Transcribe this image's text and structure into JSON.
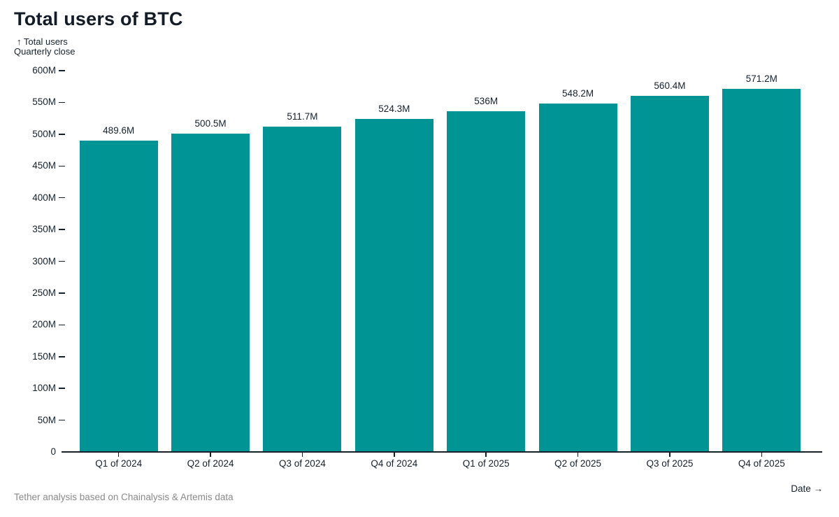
{
  "header": {
    "title": "Total users of BTC"
  },
  "chart_data": {
    "type": "bar",
    "title": "Total users of BTC",
    "y_axis_title_line1": "Total users",
    "y_axis_title_arrow": "↑",
    "y_axis_title_line2": "Quarterly close",
    "x_axis_title": "Date →",
    "categories": [
      "Q1 of 2024",
      "Q2 of 2024",
      "Q3 of 2024",
      "Q4 of 2024",
      "Q1 of 2025",
      "Q2 of 2025",
      "Q3 of 2025",
      "Q4 of 2025"
    ],
    "values": [
      489.6,
      500.5,
      511.7,
      524.3,
      536,
      548.2,
      560.4,
      571.2
    ],
    "value_labels": [
      "489.6M",
      "500.5M",
      "511.7M",
      "524.3M",
      "536M",
      "548.2M",
      "560.4M",
      "571.2M"
    ],
    "ylim": [
      0,
      600
    ],
    "y_tick_step": 50,
    "y_tick_labels": [
      "0",
      "50M",
      "100M",
      "150M",
      "200M",
      "250M",
      "300M",
      "350M",
      "400M",
      "450M",
      "500M",
      "550M",
      "600M"
    ],
    "bar_color": "#009494",
    "axis_color": "#16212b",
    "grid": false,
    "legend": "none"
  },
  "footer": {
    "caption": "Tether analysis based on Chainalysis & Artemis data"
  }
}
